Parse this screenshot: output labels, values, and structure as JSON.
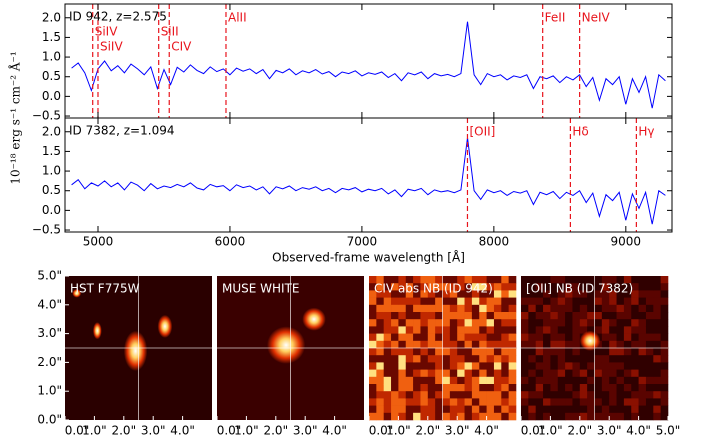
{
  "chart_data": [
    {
      "type": "line",
      "title": "ID 942, z=2.575",
      "ylabel": "10⁻¹⁸ erg s⁻¹ cm⁻² Å⁻¹",
      "xlim": [
        4750,
        9350
      ],
      "ylim": [
        -0.55,
        2.35
      ],
      "yticks": [
        {
          "value": -0.5,
          "label": "−0.5"
        },
        {
          "value": 0,
          "label": "0.0"
        },
        0.5,
        {
          "value": 1,
          "label": "1.0"
        },
        1.5,
        {
          "value": 2,
          "label": "2.0"
        }
      ],
      "x": [
        4800,
        4850,
        4900,
        4950,
        5000,
        5050,
        5100,
        5150,
        5200,
        5250,
        5300,
        5350,
        5400,
        5450,
        5500,
        5550,
        5600,
        5650,
        5700,
        5750,
        5800,
        5850,
        5900,
        5950,
        6000,
        6050,
        6100,
        6150,
        6200,
        6250,
        6300,
        6350,
        6400,
        6450,
        6500,
        6550,
        6600,
        6650,
        6700,
        6750,
        6800,
        6850,
        6900,
        6950,
        7000,
        7050,
        7100,
        7150,
        7200,
        7250,
        7300,
        7350,
        7400,
        7450,
        7500,
        7550,
        7600,
        7650,
        7700,
        7750,
        7800,
        7850,
        7900,
        7950,
        8000,
        8050,
        8100,
        8150,
        8200,
        8250,
        8300,
        8350,
        8400,
        8450,
        8500,
        8550,
        8600,
        8650,
        8700,
        8750,
        8800,
        8850,
        8900,
        8950,
        9000,
        9050,
        9100,
        9150,
        9200,
        9250,
        9300
      ],
      "series": [
        {
          "color": "#0000ff",
          "values": [
            0.72,
            0.85,
            0.6,
            0.15,
            0.7,
            0.9,
            0.65,
            0.78,
            0.6,
            0.82,
            0.7,
            0.55,
            0.75,
            0.2,
            0.68,
            0.3,
            0.74,
            0.62,
            0.8,
            0.66,
            0.58,
            0.75,
            0.63,
            0.7,
            0.55,
            0.72,
            0.64,
            0.7,
            0.58,
            0.68,
            0.45,
            0.66,
            0.6,
            0.7,
            0.55,
            0.65,
            0.6,
            0.68,
            0.57,
            0.63,
            0.5,
            0.62,
            0.58,
            0.65,
            0.52,
            0.6,
            0.56,
            0.62,
            0.48,
            0.58,
            0.4,
            0.6,
            0.55,
            0.62,
            0.45,
            0.58,
            0.52,
            0.56,
            0.5,
            0.58,
            1.9,
            0.55,
            0.3,
            0.58,
            0.5,
            0.55,
            0.42,
            0.52,
            0.48,
            0.55,
            0.2,
            0.5,
            0.45,
            0.52,
            0.35,
            0.5,
            0.42,
            0.55,
            0.25,
            0.48,
            -0.1,
            0.45,
            0.3,
            0.5,
            -0.2,
            0.45,
            0.1,
            0.5,
            -0.3,
            0.55,
            0.4
          ]
        }
      ],
      "annotations": [
        {
          "x": 4960,
          "label": "SiIV"
        },
        {
          "x": 5000,
          "label": "SiIV"
        },
        {
          "x": 5460,
          "label": "SiII"
        },
        {
          "x": 5540,
          "label": "CIV"
        },
        {
          "x": 5970,
          "label": "AlII"
        },
        {
          "x": 8370,
          "label": "FeII"
        },
        {
          "x": 8650,
          "label": "NeIV"
        }
      ]
    },
    {
      "type": "line",
      "title": "ID 7382, z=1.094",
      "xlabel": "Observed-frame wavelength [Å]",
      "xlim": [
        4750,
        9350
      ],
      "ylim": [
        -0.55,
        2.35
      ],
      "xticks": [
        5000,
        6000,
        7000,
        8000,
        9000
      ],
      "yticks": [
        {
          "value": -0.5,
          "label": "−0.5"
        },
        {
          "value": 0,
          "label": "0.0"
        },
        0.5,
        {
          "value": 1,
          "label": "1.0"
        },
        1.5,
        {
          "value": 2,
          "label": "2.0"
        }
      ],
      "x": [
        4800,
        4850,
        4900,
        4950,
        5000,
        5050,
        5100,
        5150,
        5200,
        5250,
        5300,
        5350,
        5400,
        5450,
        5500,
        5550,
        5600,
        5650,
        5700,
        5750,
        5800,
        5850,
        5900,
        5950,
        6000,
        6050,
        6100,
        6150,
        6200,
        6250,
        6300,
        6350,
        6400,
        6450,
        6500,
        6550,
        6600,
        6650,
        6700,
        6750,
        6800,
        6850,
        6900,
        6950,
        7000,
        7050,
        7100,
        7150,
        7200,
        7250,
        7300,
        7350,
        7400,
        7450,
        7500,
        7550,
        7600,
        7650,
        7700,
        7750,
        7800,
        7850,
        7900,
        7950,
        8000,
        8050,
        8100,
        8150,
        8200,
        8250,
        8300,
        8350,
        8400,
        8450,
        8500,
        8550,
        8600,
        8650,
        8700,
        8750,
        8800,
        8850,
        8900,
        8950,
        9000,
        9050,
        9100,
        9150,
        9200,
        9250,
        9300
      ],
      "series": [
        {
          "color": "#0000ff",
          "values": [
            0.65,
            0.78,
            0.55,
            0.7,
            0.62,
            0.75,
            0.6,
            0.7,
            0.52,
            0.72,
            0.64,
            0.5,
            0.68,
            0.55,
            0.62,
            0.58,
            0.66,
            0.6,
            0.7,
            0.57,
            0.52,
            0.66,
            0.6,
            0.63,
            0.5,
            0.65,
            0.58,
            0.62,
            0.52,
            0.6,
            0.42,
            0.6,
            0.55,
            0.62,
            0.5,
            0.58,
            0.54,
            0.6,
            0.5,
            0.56,
            0.45,
            0.56,
            0.52,
            0.58,
            0.47,
            0.54,
            0.5,
            0.56,
            0.42,
            0.52,
            0.35,
            0.54,
            0.5,
            0.56,
            0.4,
            0.52,
            0.47,
            0.5,
            0.45,
            0.52,
            1.85,
            0.5,
            0.28,
            0.52,
            0.45,
            0.5,
            0.38,
            0.48,
            0.44,
            0.5,
            0.15,
            0.46,
            0.4,
            0.48,
            0.3,
            0.46,
            0.38,
            0.5,
            0.2,
            0.44,
            -0.15,
            0.4,
            0.25,
            0.46,
            -0.25,
            0.42,
            0.05,
            0.46,
            -0.35,
            0.5,
            0.38
          ]
        }
      ],
      "annotations": [
        {
          "x": 7800,
          "label": "[OII]"
        },
        {
          "x": 8580,
          "label": "Hδ"
        },
        {
          "x": 9080,
          "label": "Hγ"
        }
      ]
    },
    {
      "type": "image",
      "title": "HST F775W",
      "xlim": [
        0,
        5
      ],
      "ylim": [
        0,
        5
      ],
      "xticks": [
        {
          "value": 0,
          "label": "0.0\""
        },
        {
          "value": 1,
          "label": "1.0\""
        },
        {
          "value": 2,
          "label": "2.0\""
        },
        {
          "value": 3,
          "label": "3.0\""
        },
        {
          "value": 4,
          "label": "4.0\""
        }
      ],
      "yticks": [
        {
          "value": 0,
          "label": "0.0\""
        },
        {
          "value": 1,
          "label": "1.0\""
        },
        {
          "value": 2,
          "label": "2.0\""
        },
        {
          "value": 3,
          "label": "3.0\""
        },
        {
          "value": 4,
          "label": "4.0\""
        },
        {
          "value": 5,
          "label": "5.0\""
        }
      ]
    },
    {
      "type": "image",
      "title": "MUSE WHITE",
      "xlim": [
        0,
        5
      ],
      "ylim": [
        0,
        5
      ],
      "xticks": [
        {
          "value": 0,
          "label": "0.0\""
        },
        {
          "value": 1,
          "label": "1.0\""
        },
        {
          "value": 2,
          "label": "2.0\""
        },
        {
          "value": 3,
          "label": "3.0\""
        },
        {
          "value": 4,
          "label": "4.0\""
        }
      ]
    },
    {
      "type": "image",
      "title": "CIV abs NB (ID 942)",
      "xlim": [
        0,
        5
      ],
      "ylim": [
        0,
        5
      ],
      "xticks": [
        {
          "value": 0,
          "label": "0.0\""
        },
        {
          "value": 1,
          "label": "1.0\""
        },
        {
          "value": 2,
          "label": "2.0\""
        },
        {
          "value": 3,
          "label": "3.0\""
        },
        {
          "value": 4,
          "label": "4.0\""
        }
      ]
    },
    {
      "type": "image",
      "title": "[OII] NB (ID 7382)",
      "xlim": [
        0,
        5
      ],
      "ylim": [
        0,
        5
      ],
      "xticks": [
        {
          "value": 0,
          "label": "0.0\""
        },
        {
          "value": 1,
          "label": "1.0\""
        },
        {
          "value": 2,
          "label": "2.0\""
        },
        {
          "value": 3,
          "label": "3.0\""
        },
        {
          "value": 4,
          "label": "4.0\""
        },
        {
          "value": 5,
          "label": "5.0\""
        }
      ]
    }
  ]
}
